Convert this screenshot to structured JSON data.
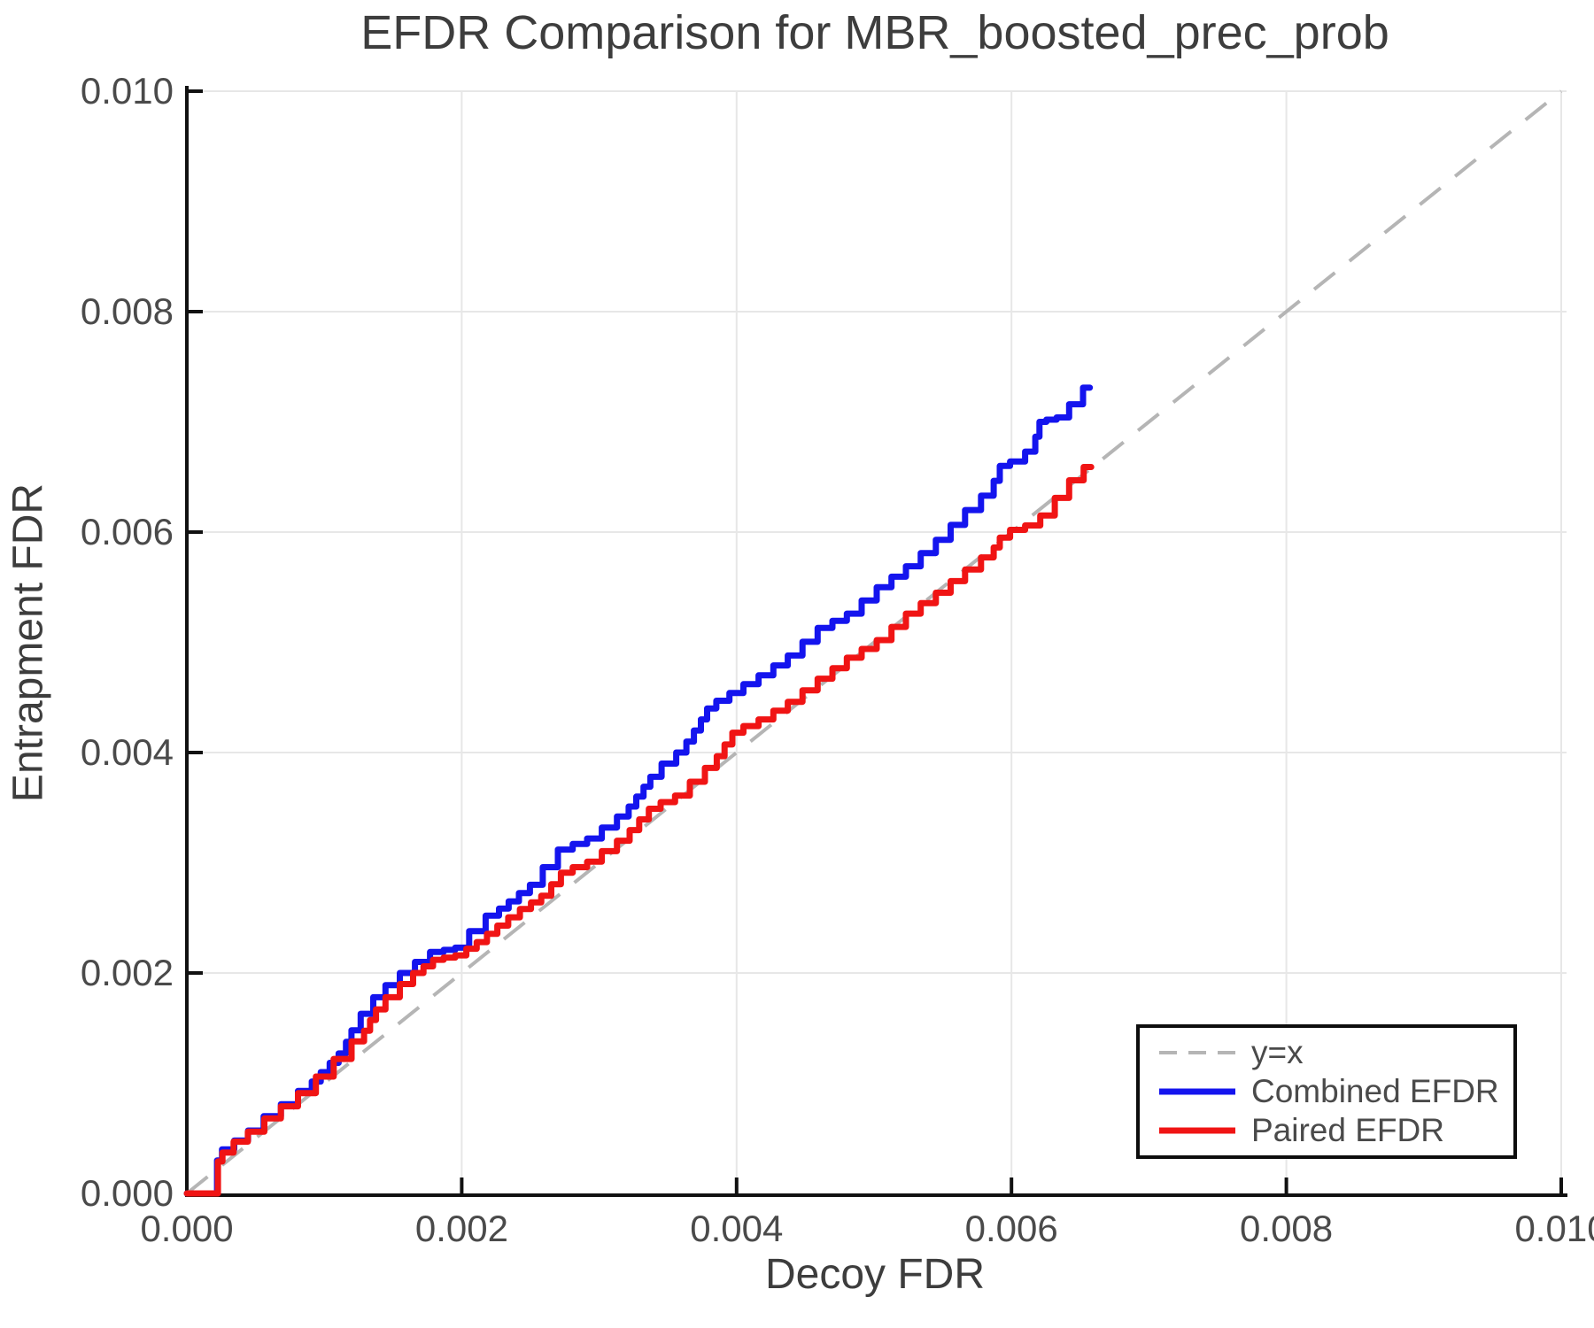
{
  "title": "EFDR Comparison for MBR_boosted_prec_prob",
  "x_axis": {
    "label": "Decoy FDR",
    "tick_values": [
      0,
      0.002,
      0.004,
      0.006,
      0.008,
      0.01
    ],
    "tick_labels": [
      "0.000",
      "0.002",
      "0.004",
      "0.006",
      "0.008",
      "0.010"
    ],
    "range": [
      0,
      0.01
    ]
  },
  "y_axis": {
    "label": "Entrapment FDR",
    "tick_values": [
      0,
      0.002,
      0.004,
      0.006,
      0.008,
      0.01
    ],
    "tick_labels": [
      "0.000",
      "0.002",
      "0.004",
      "0.006",
      "0.008",
      "0.010"
    ],
    "range": [
      0,
      0.01
    ]
  },
  "legend": {
    "position": "lower right",
    "entries": [
      {
        "label": "y=x",
        "color": "#b5b5b5",
        "style": "dashed"
      },
      {
        "label": "Combined EFDR",
        "color": "#1414ee",
        "style": "solid"
      },
      {
        "label": "Paired EFDR",
        "color": "#f01414",
        "style": "solid"
      }
    ]
  },
  "colors": {
    "grid": "#e7e7e7",
    "axis": "#111111",
    "diagonal": "#b5b5b5",
    "combined": "#1414ee",
    "paired": "#f01414",
    "title_text": "#3d3d3d",
    "tick_text": "#4a4a4a",
    "background": "#ffffff"
  },
  "chart_data": {
    "type": "line",
    "title": "EFDR Comparison for MBR_boosted_prec_prob",
    "xlabel": "Decoy FDR",
    "ylabel": "Entrapment FDR",
    "xlim": [
      0,
      0.01
    ],
    "ylim": [
      0,
      0.01
    ],
    "grid": true,
    "legend_position": "lower right",
    "series": [
      {
        "name": "y=x",
        "style": "dashed",
        "color": "#b5b5b5",
        "points": [
          [
            0,
            0
          ],
          [
            0.01,
            0.01
          ]
        ]
      },
      {
        "name": "Combined EFDR",
        "style": "solid",
        "color": "#1414ee",
        "points": [
          [
            0,
            0
          ],
          [
            0.00022,
            0
          ],
          [
            0.00022,
            0.0003
          ],
          [
            0.0003,
            0.0004
          ],
          [
            0.0004,
            0.00048
          ],
          [
            0.0005,
            0.00057
          ],
          [
            0.00063,
            0.0007
          ],
          [
            0.00075,
            0.00081
          ],
          [
            0.00088,
            0.00093
          ],
          [
            0.00101,
            0.0011
          ],
          [
            0.00114,
            0.00127
          ],
          [
            0.00122,
            0.00148
          ],
          [
            0.00132,
            0.00163
          ],
          [
            0.0014,
            0.00178
          ],
          [
            0.0015,
            0.00189
          ],
          [
            0.00161,
            0.002
          ],
          [
            0.00172,
            0.0021
          ],
          [
            0.00183,
            0.00219
          ],
          [
            0.002,
            0.00223
          ],
          [
            0.00212,
            0.00238
          ],
          [
            0.00224,
            0.00252
          ],
          [
            0.00238,
            0.00265
          ],
          [
            0.00254,
            0.0028
          ],
          [
            0.00265,
            0.00296
          ],
          [
            0.00276,
            0.00312
          ],
          [
            0.00297,
            0.00322
          ],
          [
            0.00319,
            0.00342
          ],
          [
            0.0033,
            0.0036
          ],
          [
            0.0034,
            0.00378
          ],
          [
            0.00352,
            0.0039
          ],
          [
            0.00361,
            0.004
          ],
          [
            0.00372,
            0.0042
          ],
          [
            0.00381,
            0.0044
          ],
          [
            0.004,
            0.00454
          ],
          [
            0.00422,
            0.0047
          ],
          [
            0.00443,
            0.00488
          ],
          [
            0.00465,
            0.00513
          ],
          [
            0.00486,
            0.00526
          ],
          [
            0.00508,
            0.0055
          ],
          [
            0.00529,
            0.00569
          ],
          [
            0.00551,
            0.00593
          ],
          [
            0.00572,
            0.0062
          ],
          [
            0.00585,
            0.00633
          ],
          [
            0.00594,
            0.0066
          ],
          [
            0.00605,
            0.00664
          ],
          [
            0.00616,
            0.00673
          ],
          [
            0.00622,
            0.007
          ],
          [
            0.00637,
            0.00704
          ],
          [
            0.00648,
            0.00716
          ],
          [
            0.00657,
            0.00731
          ]
        ]
      },
      {
        "name": "Paired EFDR",
        "style": "solid",
        "color": "#f01414",
        "points": [
          [
            0,
            0
          ],
          [
            0.000226,
            0
          ],
          [
            0.000226,
            0.00029
          ],
          [
            0.0003,
            0.00037
          ],
          [
            0.00039,
            0.00047
          ],
          [
            0.00051,
            0.00056
          ],
          [
            0.00063,
            0.00068
          ],
          [
            0.00075,
            0.00079
          ],
          [
            0.00088,
            0.00091
          ],
          [
            0.00101,
            0.00106
          ],
          [
            0.00114,
            0.00122
          ],
          [
            0.00127,
            0.00138
          ],
          [
            0.0014,
            0.00167
          ],
          [
            0.0015,
            0.00178
          ],
          [
            0.00161,
            0.0019
          ],
          [
            0.00169,
            0.002
          ],
          [
            0.00183,
            0.00212
          ],
          [
            0.002,
            0.00216
          ],
          [
            0.00215,
            0.00228
          ],
          [
            0.0023,
            0.00243
          ],
          [
            0.00247,
            0.00258
          ],
          [
            0.00262,
            0.0027
          ],
          [
            0.00276,
            0.00291
          ],
          [
            0.00297,
            0.00301
          ],
          [
            0.00319,
            0.0032
          ],
          [
            0.0034,
            0.00349
          ],
          [
            0.00361,
            0.00361
          ],
          [
            0.00383,
            0.00386
          ],
          [
            0.004,
            0.00418
          ],
          [
            0.00422,
            0.0043
          ],
          [
            0.00443,
            0.00446
          ],
          [
            0.00465,
            0.00467
          ],
          [
            0.00486,
            0.00486
          ],
          [
            0.00508,
            0.00502
          ],
          [
            0.00529,
            0.00526
          ],
          [
            0.00551,
            0.00545
          ],
          [
            0.00572,
            0.00566
          ],
          [
            0.00585,
            0.00577
          ],
          [
            0.00594,
            0.00595
          ],
          [
            0.00605,
            0.00602
          ],
          [
            0.00616,
            0.00606
          ],
          [
            0.00627,
            0.00615
          ],
          [
            0.00637,
            0.00631
          ],
          [
            0.00648,
            0.00647
          ],
          [
            0.00658,
            0.00659
          ]
        ]
      }
    ]
  }
}
